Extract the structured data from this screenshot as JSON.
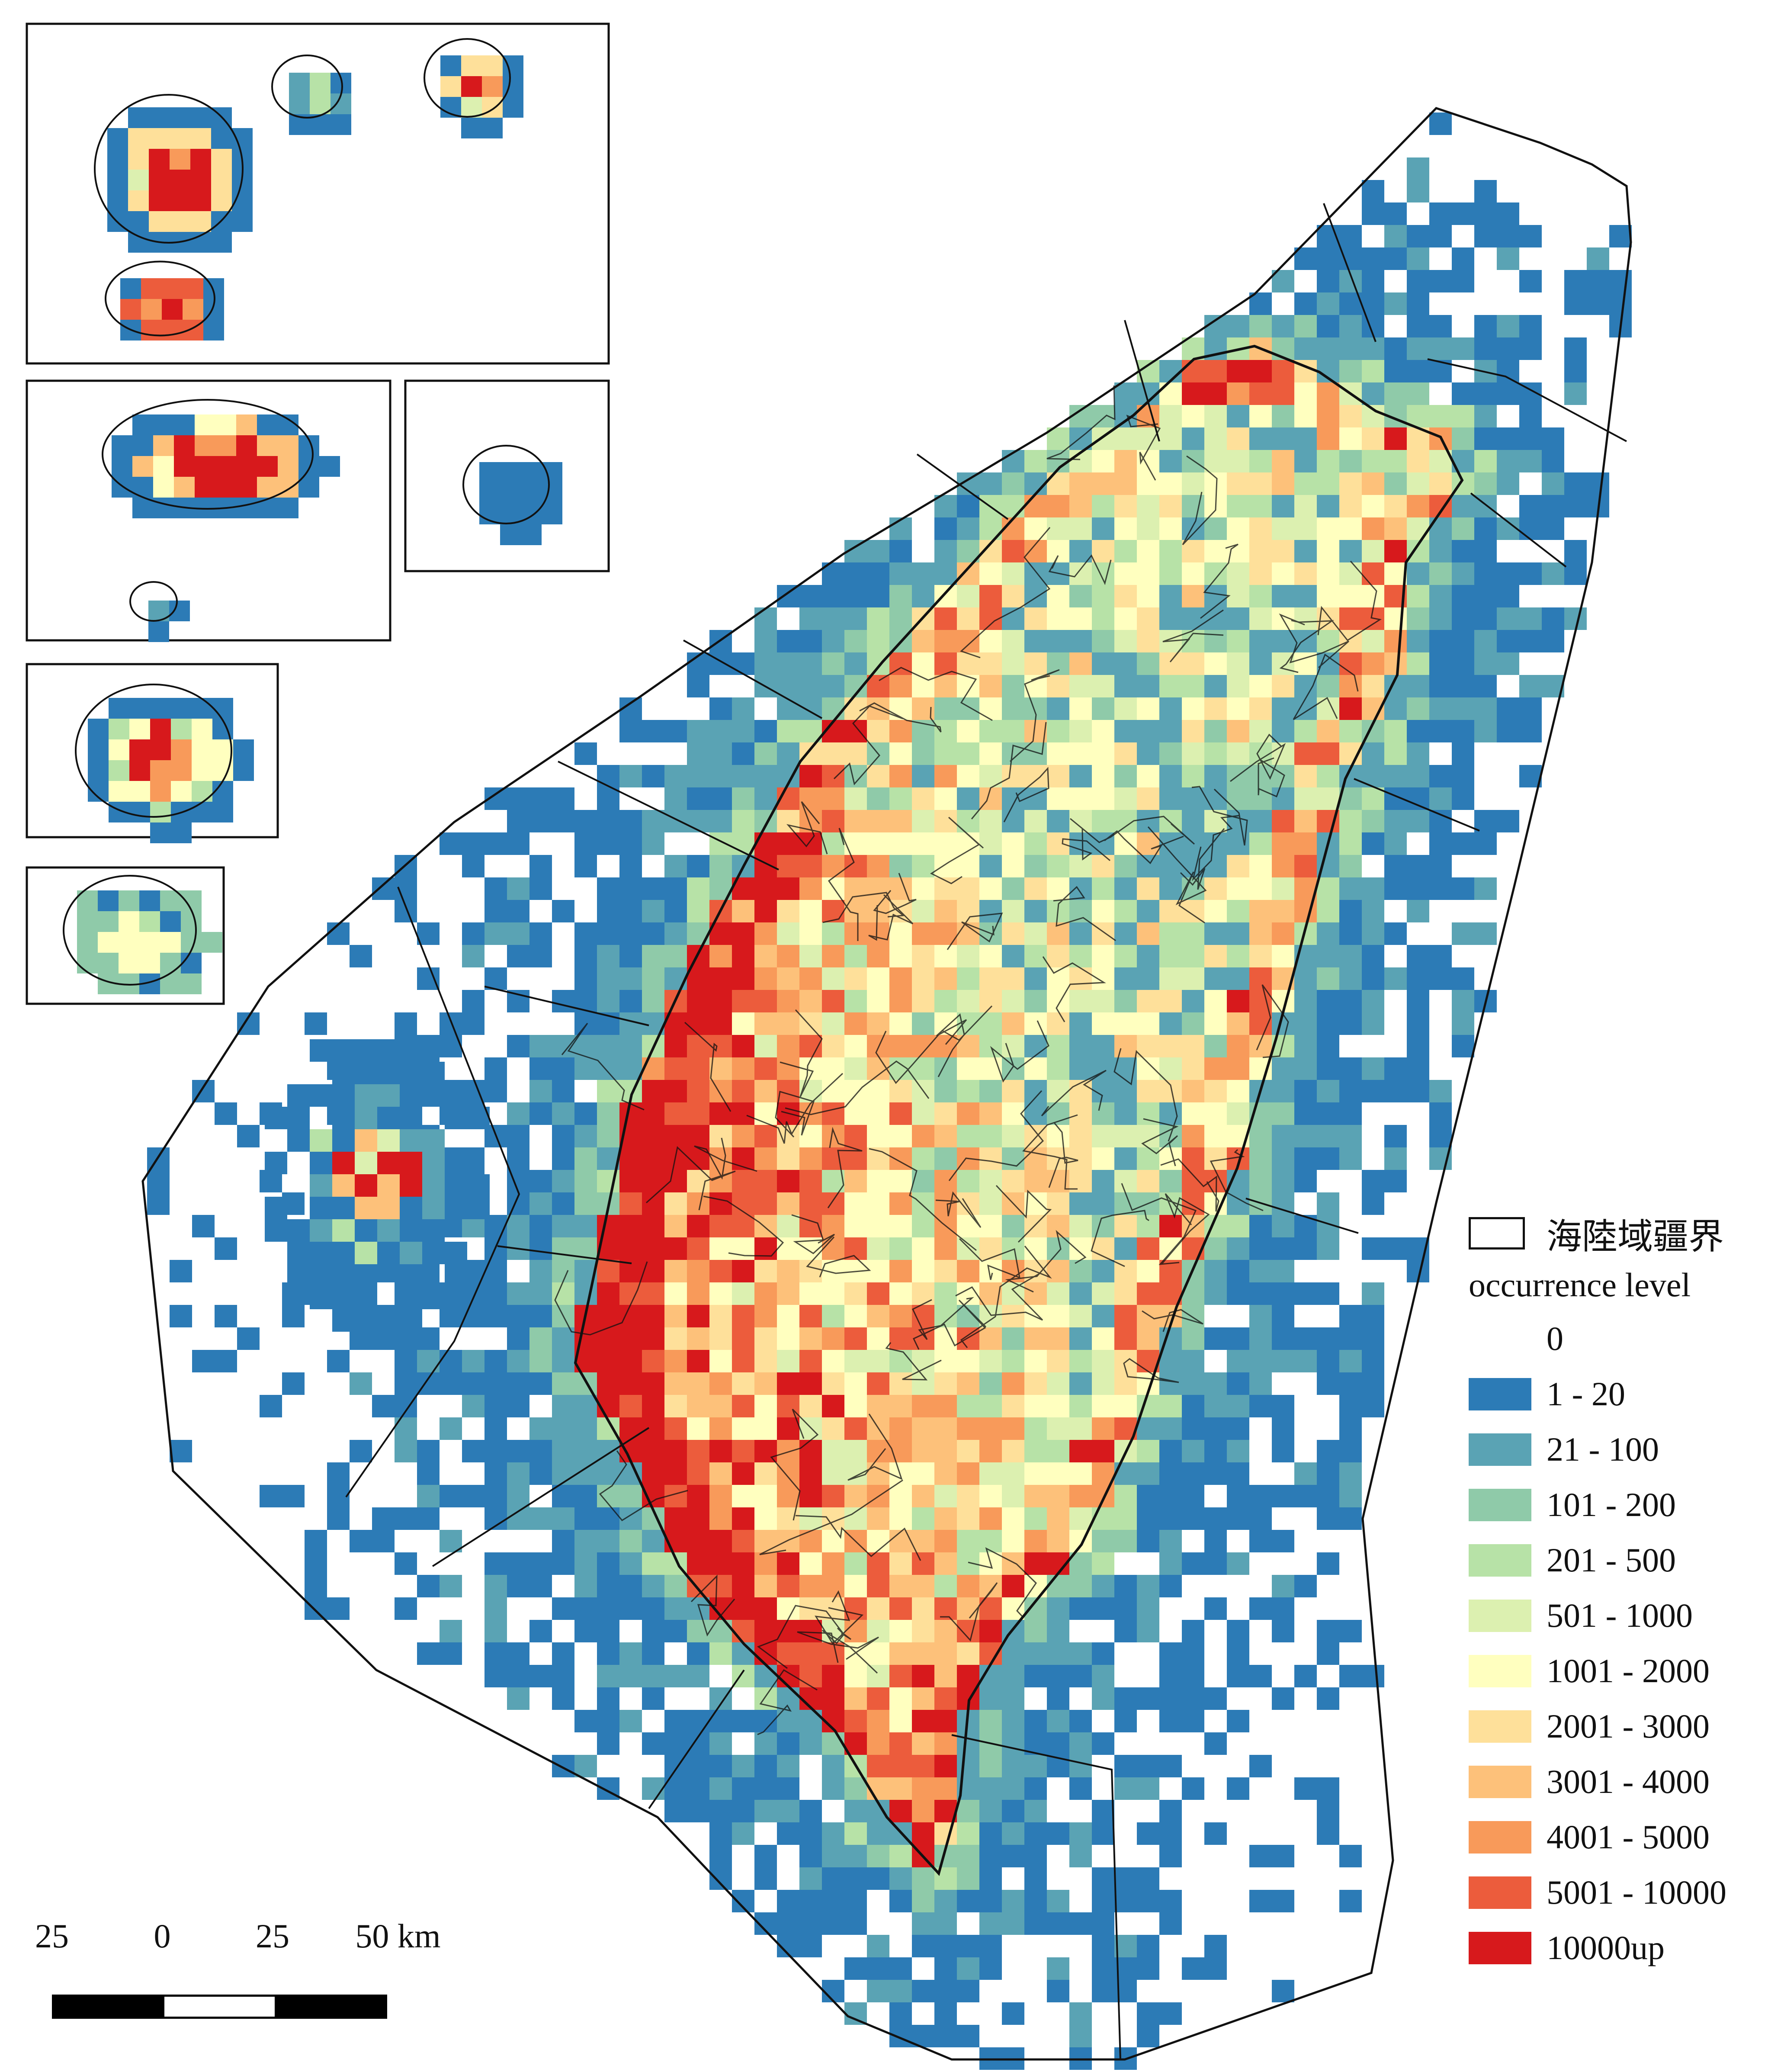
{
  "map": {
    "legend": {
      "boundary_label": "海陸域疆界",
      "title": "occurrence level",
      "items": [
        {
          "label": "0",
          "color": "#ffffff"
        },
        {
          "label": "1 - 20",
          "color": "#2c7bb6"
        },
        {
          "label": "21 - 100",
          "color": "#5aa3b4"
        },
        {
          "label": "101 - 200",
          "color": "#8fcaa9"
        },
        {
          "label": "201 - 500",
          "color": "#b7e2a7"
        },
        {
          "label": "501 - 1000",
          "color": "#dcf0b0"
        },
        {
          "label": "1001 - 2000",
          "color": "#ffffbf"
        },
        {
          "label": "2001 - 3000",
          "color": "#fee09a"
        },
        {
          "label": "3001 - 4000",
          "color": "#fdc17a"
        },
        {
          "label": "4001 - 5000",
          "color": "#f89a5a"
        },
        {
          "label": "5001 - 10000",
          "color": "#ec5c3c"
        },
        {
          "label": "10000up",
          "color": "#d7191c"
        }
      ]
    },
    "scalebar": {
      "labels": [
        "25",
        "0",
        "25",
        "50 km"
      ],
      "segment_colors": [
        "#000000",
        "#ffffff",
        "#000000",
        "#000000"
      ]
    }
  }
}
